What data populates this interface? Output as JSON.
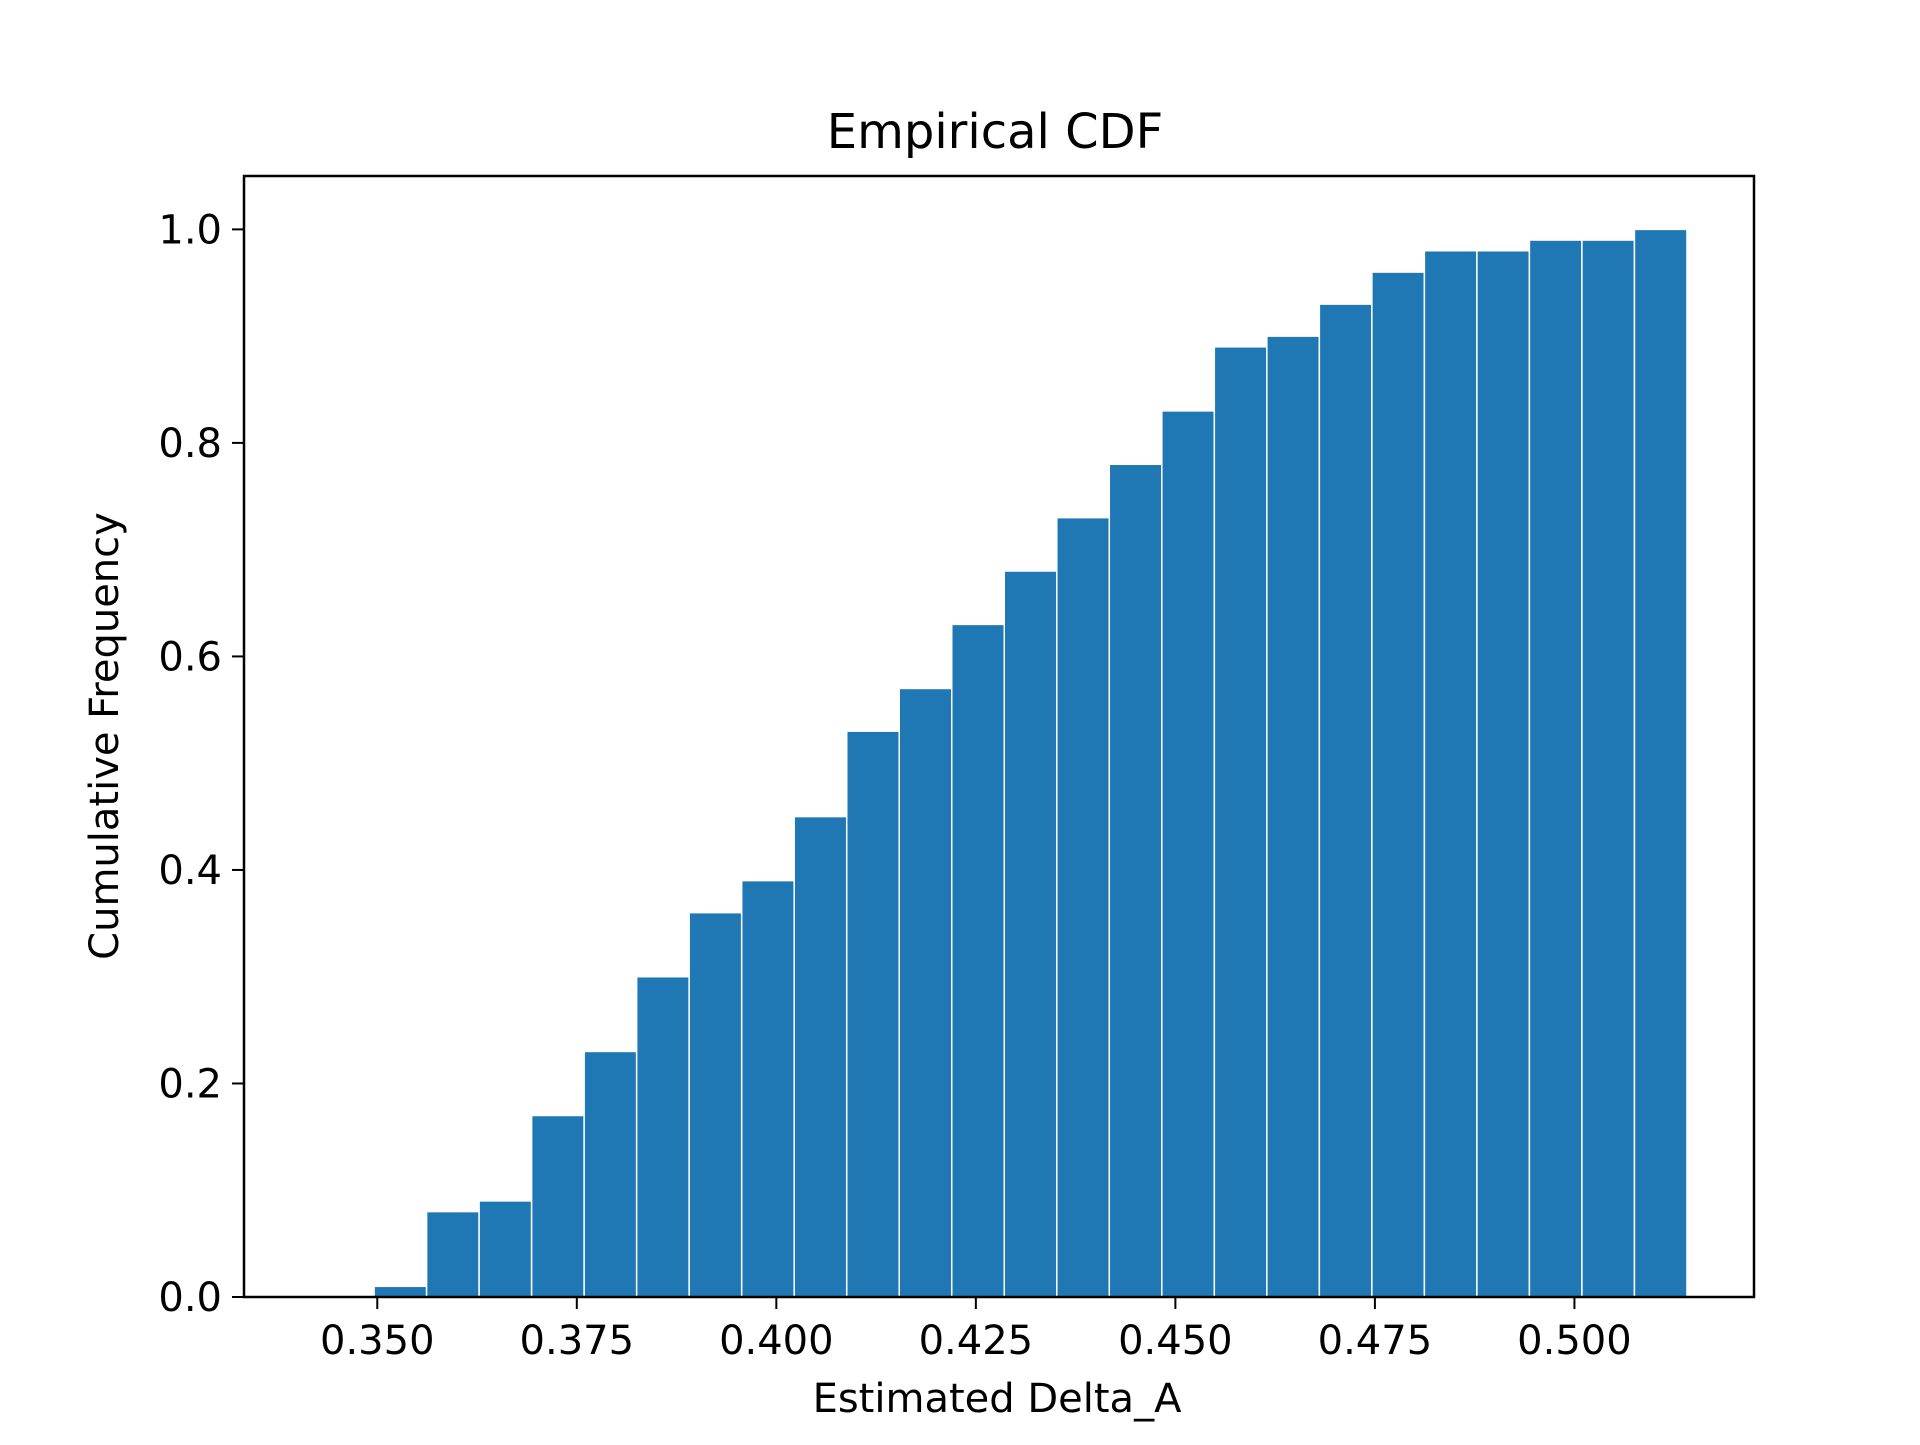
{
  "chart_data": {
    "type": "bar",
    "title": "Empirical CDF",
    "xlabel": "Estimated Delta_A",
    "ylabel": "Cumulative Frequency",
    "xlim": [
      0.3333,
      0.5225
    ],
    "ylim": [
      0.0,
      1.05
    ],
    "xticks": [
      "0.350",
      "0.375",
      "0.400",
      "0.425",
      "0.450",
      "0.475",
      "0.500"
    ],
    "xtick_values": [
      0.35,
      0.375,
      0.4,
      0.425,
      0.45,
      0.475,
      0.5
    ],
    "yticks": [
      "0.0",
      "0.2",
      "0.4",
      "0.6",
      "0.8",
      "1.0"
    ],
    "ytick_values": [
      0.0,
      0.2,
      0.4,
      0.6,
      0.8,
      1.0
    ],
    "grid": false,
    "bar_color": "#1f77b4",
    "bar_edge_color": "#ffffff",
    "bin_start": 0.3496,
    "bin_width": 0.00658,
    "values": [
      0.01,
      0.08,
      0.09,
      0.17,
      0.23,
      0.3,
      0.36,
      0.39,
      0.45,
      0.53,
      0.57,
      0.63,
      0.68,
      0.73,
      0.78,
      0.83,
      0.89,
      0.9,
      0.93,
      0.96,
      0.98,
      0.98,
      0.99,
      0.99,
      1.0
    ]
  }
}
